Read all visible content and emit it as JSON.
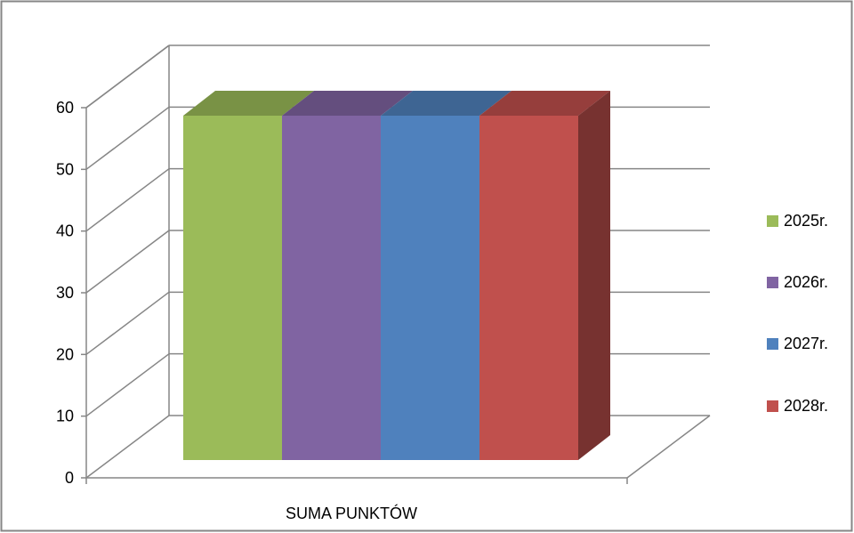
{
  "chart_data": {
    "type": "bar",
    "style": "3d-clustered-column",
    "categories": [
      "SUMA PUNKTÓW"
    ],
    "series": [
      {
        "name": "2025r.",
        "values": [
          57
        ],
        "color": "#9bbb59"
      },
      {
        "name": "2026r.",
        "values": [
          57
        ],
        "color": "#8064a2"
      },
      {
        "name": "2027r.",
        "values": [
          57
        ],
        "color": "#4f81bd"
      },
      {
        "name": "2028r.",
        "values": [
          57
        ],
        "color": "#c0504d"
      }
    ],
    "title": "",
    "xlabel": "",
    "ylabel": "",
    "ylim": [
      0,
      60
    ],
    "yticks": [
      0,
      10,
      20,
      30,
      40,
      50,
      60
    ],
    "grid": true,
    "legend": "right"
  }
}
